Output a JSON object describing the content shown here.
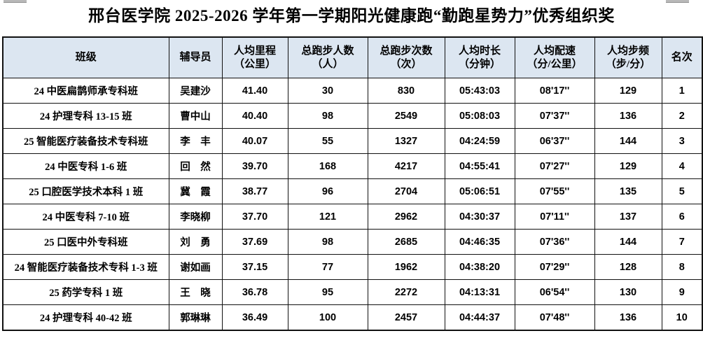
{
  "title": "邢台医学院 2025-2026 学年第一学期阳光健康跑“勤跑星势力”优秀组织奖",
  "colors": {
    "header_bg": "#dce6f1",
    "border": "#111111",
    "text": "#000000"
  },
  "table": {
    "headers": [
      "班级",
      "辅导员",
      "人均里程\n（公里）",
      "总跑步人数\n（人）",
      "总跑步次数\n（次）",
      "人均时长\n（分钟）",
      "人均配速\n（分/公里）",
      "人均步频\n（步/分）",
      "名次"
    ],
    "rows": [
      {
        "class": "24 中医扁鹊师承专科班",
        "counselor": "吴建沙",
        "mileage": "41.40",
        "runners": "30",
        "runs": "830",
        "duration": "05:43:03",
        "pace": "08'17''",
        "cadence": "129",
        "rank": "1"
      },
      {
        "class": "24 护理专科 13-15 班",
        "counselor": "曹中山",
        "mileage": "40.40",
        "runners": "98",
        "runs": "2549",
        "duration": "05:08:03",
        "pace": "07'37''",
        "cadence": "136",
        "rank": "2"
      },
      {
        "class": "25 智能医疗装备技术专科班",
        "counselor": "李　丰",
        "mileage": "40.07",
        "runners": "55",
        "runs": "1327",
        "duration": "04:24:59",
        "pace": "06'37''",
        "cadence": "144",
        "rank": "3"
      },
      {
        "class": "24 中医专科 1-6 班",
        "counselor": "回　然",
        "mileage": "39.70",
        "runners": "168",
        "runs": "4217",
        "duration": "04:55:41",
        "pace": "07'27''",
        "cadence": "129",
        "rank": "4"
      },
      {
        "class": "25 口腔医学技术本科 1 班",
        "counselor": "冀　霞",
        "mileage": "38.77",
        "runners": "96",
        "runs": "2704",
        "duration": "05:06:51",
        "pace": "07'55''",
        "cadence": "135",
        "rank": "5"
      },
      {
        "class": "24 中医专科 7-10 班",
        "counselor": "李晓柳",
        "mileage": "37.70",
        "runners": "121",
        "runs": "2962",
        "duration": "04:30:37",
        "pace": "07'11''",
        "cadence": "137",
        "rank": "6"
      },
      {
        "class": "25 口医中外专科班",
        "counselor": "刘　勇",
        "mileage": "37.69",
        "runners": "98",
        "runs": "2685",
        "duration": "04:46:35",
        "pace": "07'36''",
        "cadence": "144",
        "rank": "7"
      },
      {
        "class": "24 智能医疗装备技术专科 1-3 班",
        "counselor": "谢如画",
        "mileage": "37.15",
        "runners": "77",
        "runs": "1962",
        "duration": "04:38:20",
        "pace": "07'29''",
        "cadence": "128",
        "rank": "8"
      },
      {
        "class": "25 药学专科 1 班",
        "counselor": "王　晓",
        "mileage": "36.78",
        "runners": "95",
        "runs": "2272",
        "duration": "04:13:31",
        "pace": "06'54''",
        "cadence": "130",
        "rank": "9"
      },
      {
        "class": "24 护理专科 40-42 班",
        "counselor": "郭琳琳",
        "mileage": "36.49",
        "runners": "100",
        "runs": "2457",
        "duration": "04:44:37",
        "pace": "07'48''",
        "cadence": "136",
        "rank": "10"
      }
    ]
  }
}
